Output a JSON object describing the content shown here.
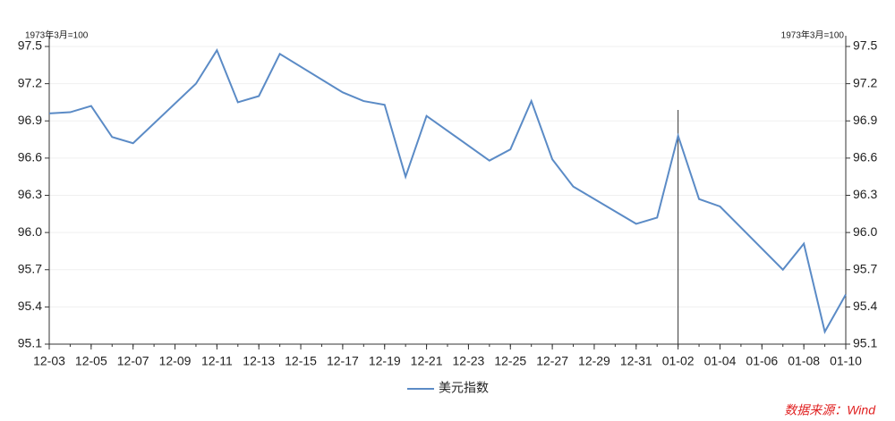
{
  "chart_data": {
    "type": "line",
    "ylabel": "1973年3月=100",
    "y2label": "1973年3月=100",
    "x": [
      "12-03",
      "12-04",
      "12-05",
      "12-06",
      "12-07",
      "12-10",
      "12-11",
      "12-12",
      "12-13",
      "12-14",
      "12-17",
      "12-18",
      "12-19",
      "12-20",
      "12-21",
      "12-24",
      "12-25",
      "12-26",
      "12-27",
      "12-28",
      "12-31",
      "01-01",
      "01-02",
      "01-03",
      "01-04",
      "01-07",
      "01-08",
      "01-09",
      "01-10"
    ],
    "series": [
      {
        "name": "美元指数",
        "color": "#5b8bc6",
        "values": [
          96.96,
          96.97,
          97.02,
          96.77,
          96.72,
          97.2,
          97.47,
          97.05,
          97.1,
          97.44,
          97.13,
          97.06,
          97.03,
          96.45,
          96.94,
          96.58,
          96.67,
          97.06,
          96.59,
          96.37,
          96.07,
          96.12,
          96.78,
          96.27,
          96.21,
          95.7,
          95.91,
          95.2,
          95.5
        ]
      }
    ],
    "xticks": [
      "12-03",
      "12-05",
      "12-07",
      "12-09",
      "12-11",
      "12-13",
      "12-15",
      "12-17",
      "12-19",
      "12-21",
      "12-23",
      "12-25",
      "12-27",
      "12-29",
      "12-31",
      "01-02",
      "01-04",
      "01-06",
      "01-08",
      "01-10"
    ],
    "ylim": [
      95.1,
      97.5
    ],
    "yticks": [
      {
        "value": 95.1,
        "label": "95.1"
      },
      {
        "value": 95.4,
        "label": "95.4"
      },
      {
        "value": 95.7,
        "label": "95.7"
      },
      {
        "value": 96.0,
        "label": "96.0"
      },
      {
        "value": 96.3,
        "label": "96.3"
      },
      {
        "value": 96.6,
        "label": "96.6"
      },
      {
        "value": 96.9,
        "label": "96.9"
      },
      {
        "value": 97.2,
        "label": "97.2"
      },
      {
        "value": 97.5,
        "label": "97.5"
      }
    ],
    "y2lim": [
      95.1,
      97.5
    ],
    "y2ticks": [
      {
        "value": 95.1,
        "label": "95.1"
      },
      {
        "value": 95.4,
        "label": "95.4"
      },
      {
        "value": 95.7,
        "label": "95.7"
      },
      {
        "value": 96.0,
        "label": "96.0"
      },
      {
        "value": 96.3,
        "label": "96.3"
      },
      {
        "value": 96.6,
        "label": "96.6"
      },
      {
        "value": 96.9,
        "label": "96.9"
      },
      {
        "value": 97.2,
        "label": "97.2"
      },
      {
        "value": 97.5,
        "label": "97.5"
      }
    ],
    "grid": true,
    "cursor_x": "01-02",
    "source": "数据来源：Wind"
  }
}
